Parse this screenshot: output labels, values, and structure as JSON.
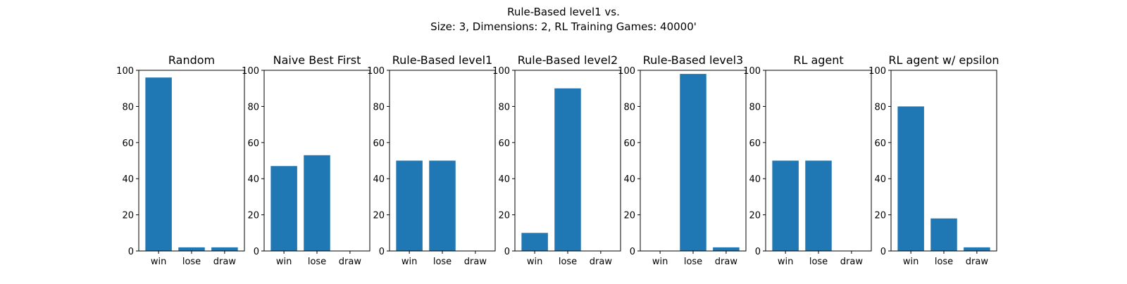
{
  "figure": {
    "title_line1": "Rule-Based level1 vs.",
    "title_line2": "Size: 3, Dimensions: 2, RL Training Games: 40000'"
  },
  "colors": {
    "bar": "#1f77b4",
    "axis": "#000000",
    "background": "#ffffff"
  },
  "chart_data": [
    {
      "type": "bar",
      "title": "Random",
      "categories": [
        "win",
        "lose",
        "draw"
      ],
      "values": [
        96,
        2,
        2
      ],
      "ylim": [
        0,
        100
      ],
      "yticks": [
        0,
        20,
        40,
        60,
        80,
        100
      ],
      "grid": false
    },
    {
      "type": "bar",
      "title": "Naive Best First",
      "categories": [
        "win",
        "lose",
        "draw"
      ],
      "values": [
        47,
        53,
        0
      ],
      "ylim": [
        0,
        100
      ],
      "yticks": [
        0,
        20,
        40,
        60,
        80,
        100
      ],
      "grid": false
    },
    {
      "type": "bar",
      "title": "Rule-Based level1",
      "categories": [
        "win",
        "lose",
        "draw"
      ],
      "values": [
        50,
        50,
        0
      ],
      "ylim": [
        0,
        100
      ],
      "yticks": [
        0,
        20,
        40,
        60,
        80,
        100
      ],
      "grid": false
    },
    {
      "type": "bar",
      "title": "Rule-Based level2",
      "categories": [
        "win",
        "lose",
        "draw"
      ],
      "values": [
        10,
        90,
        0
      ],
      "ylim": [
        0,
        100
      ],
      "yticks": [
        0,
        20,
        40,
        60,
        80,
        100
      ],
      "grid": false
    },
    {
      "type": "bar",
      "title": "Rule-Based level3",
      "categories": [
        "win",
        "lose",
        "draw"
      ],
      "values": [
        0,
        98,
        2
      ],
      "ylim": [
        0,
        100
      ],
      "yticks": [
        0,
        20,
        40,
        60,
        80,
        100
      ],
      "grid": false
    },
    {
      "type": "bar",
      "title": "RL agent",
      "categories": [
        "win",
        "lose",
        "draw"
      ],
      "values": [
        50,
        50,
        0
      ],
      "ylim": [
        0,
        100
      ],
      "yticks": [
        0,
        20,
        40,
        60,
        80,
        100
      ],
      "grid": false
    },
    {
      "type": "bar",
      "title": "RL agent w/ epsilon",
      "categories": [
        "win",
        "lose",
        "draw"
      ],
      "values": [
        80,
        18,
        2
      ],
      "ylim": [
        0,
        100
      ],
      "yticks": [
        0,
        20,
        40,
        60,
        80,
        100
      ],
      "grid": false
    }
  ]
}
